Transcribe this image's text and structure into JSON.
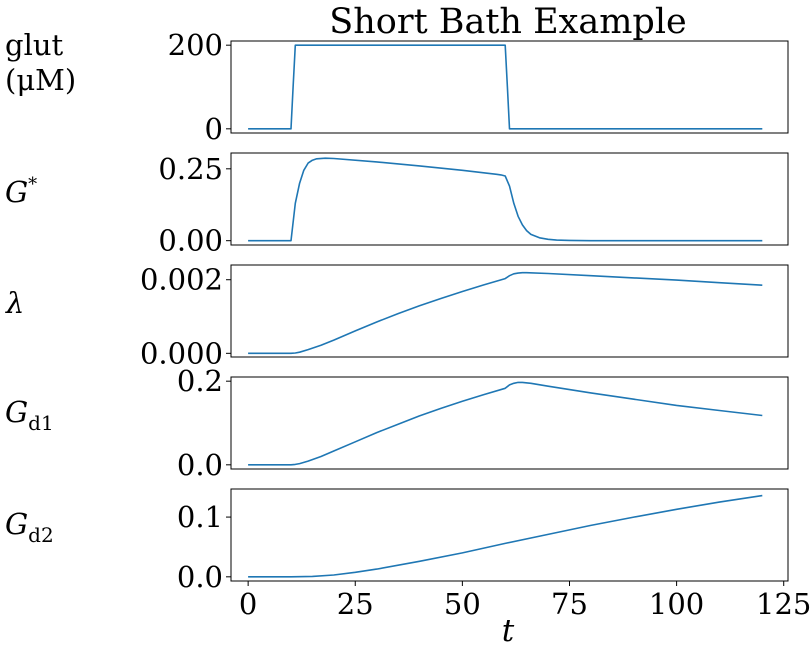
{
  "chart_data": {
    "type": "line",
    "title": "Short Bath Example",
    "xlabel": "t",
    "xlim": [
      -4,
      126
    ],
    "xticks": [
      0,
      25,
      50,
      75,
      100,
      125
    ],
    "grid": false,
    "legend": "none",
    "color": "#1f77b4",
    "panels": [
      {
        "ylabel_lines": [
          "glut",
          "(μM)"
        ],
        "ylim": [
          -10,
          210
        ],
        "yticks": [
          {
            "value": 0,
            "label": "0"
          },
          {
            "value": 200,
            "label": "200"
          }
        ],
        "show_xticks": false,
        "x": [
          0,
          10,
          10.5,
          11,
          60,
          60.5,
          61,
          120
        ],
        "y": [
          0,
          0,
          100,
          200,
          200,
          100,
          0,
          0
        ]
      },
      {
        "ylabel_lines": [
          "G*"
        ],
        "ylim": [
          -0.015,
          0.305
        ],
        "yticks": [
          {
            "value": 0,
            "label": "0.00"
          },
          {
            "value": 0.25,
            "label": "0.25"
          }
        ],
        "show_xticks": false,
        "x": [
          0,
          10,
          11,
          12,
          13,
          14,
          15,
          16,
          18,
          20,
          30,
          40,
          50,
          58,
          59,
          60,
          61,
          62,
          63,
          64,
          65,
          66,
          68,
          70,
          72,
          75,
          80,
          120
        ],
        "y": [
          0,
          0,
          0.13,
          0.2,
          0.245,
          0.27,
          0.28,
          0.285,
          0.287,
          0.286,
          0.274,
          0.26,
          0.245,
          0.231,
          0.229,
          0.225,
          0.19,
          0.13,
          0.085,
          0.055,
          0.035,
          0.022,
          0.01,
          0.005,
          0.002,
          0.001,
          0,
          0
        ]
      },
      {
        "ylabel_lines": [
          "λ"
        ],
        "ylim": [
          -0.0001,
          0.0024
        ],
        "yticks": [
          {
            "value": 0,
            "label": "0.000"
          },
          {
            "value": 0.002,
            "label": "0.002"
          }
        ],
        "show_xticks": false,
        "x": [
          0,
          10,
          11,
          12,
          14,
          17,
          20,
          25,
          30,
          35,
          40,
          45,
          50,
          55,
          60,
          61,
          62,
          63,
          64,
          65,
          70,
          80,
          90,
          100,
          110,
          120
        ],
        "y": [
          0,
          0,
          1e-05,
          3e-05,
          0.0001,
          0.00022,
          0.00036,
          0.00061,
          0.00085,
          0.00108,
          0.00129,
          0.00149,
          0.00168,
          0.00186,
          0.00203,
          0.00211,
          0.00216,
          0.00218,
          0.00219,
          0.00219,
          0.00217,
          0.00211,
          0.00205,
          0.00199,
          0.00192,
          0.00185
        ],
        "y_note": "λ"
      },
      {
        "ylabel_lines": [
          "Gd1"
        ],
        "ylim": [
          -0.01,
          0.21
        ],
        "yticks": [
          {
            "value": 0,
            "label": "0.0"
          },
          {
            "value": 0.2,
            "label": "0.2"
          }
        ],
        "show_xticks": false,
        "x": [
          0,
          10,
          11,
          12,
          14,
          17,
          20,
          25,
          30,
          35,
          40,
          45,
          50,
          55,
          60,
          61,
          62,
          63,
          64,
          66,
          70,
          80,
          90,
          100,
          110,
          120
        ],
        "y": [
          0,
          0,
          0.001,
          0.003,
          0.009,
          0.02,
          0.033,
          0.055,
          0.077,
          0.097,
          0.117,
          0.135,
          0.152,
          0.168,
          0.183,
          0.191,
          0.195,
          0.197,
          0.197,
          0.195,
          0.188,
          0.172,
          0.157,
          0.142,
          0.13,
          0.118
        ]
      },
      {
        "ylabel_lines": [
          "Gd2"
        ],
        "ylim": [
          -0.007,
          0.147
        ],
        "yticks": [
          {
            "value": 0,
            "label": "0.0"
          },
          {
            "value": 0.1,
            "label": "0.1"
          }
        ],
        "show_xticks": true,
        "x": [
          0,
          10,
          15,
          20,
          25,
          30,
          40,
          50,
          60,
          70,
          80,
          90,
          100,
          110,
          120
        ],
        "y": [
          0,
          0,
          0.0007,
          0.003,
          0.0075,
          0.013,
          0.026,
          0.04,
          0.056,
          0.071,
          0.086,
          0.1,
          0.113,
          0.125,
          0.136
        ]
      }
    ]
  }
}
